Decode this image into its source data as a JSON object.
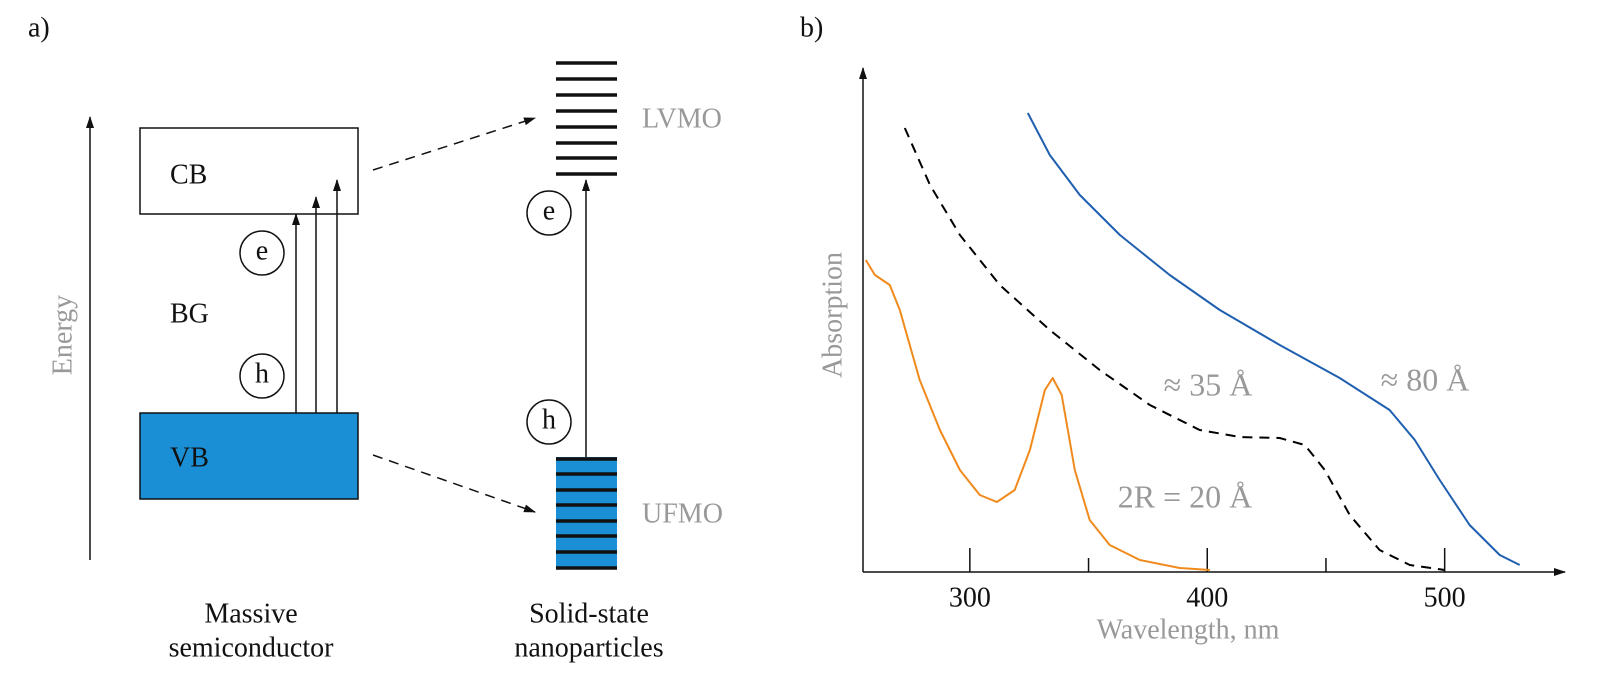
{
  "panel_a": {
    "label": "a)",
    "energy_label": "Energy",
    "bands": {
      "cb": "CB",
      "bg": "BG",
      "vb": "VB"
    },
    "bulk": {
      "e": "e",
      "h": "h",
      "caption": [
        "Massive",
        "semiconductor"
      ]
    },
    "nano": {
      "e": "e",
      "h": "h",
      "lvmo": "LVMO",
      "ufmo": "UFMO",
      "caption": [
        "Solid-state",
        "nanoparticles"
      ]
    }
  },
  "chart_data": {
    "type": "line",
    "panel_label": "b)",
    "x_label": "Wavelength, nm",
    "y_label": "Absorption",
    "xlim": [
      255,
      549
    ],
    "ylim": [
      0,
      100
    ],
    "xticks": [
      300,
      400,
      500
    ],
    "xminor": [
      350,
      450
    ],
    "series": [
      {
        "name": "2R = 20 Å",
        "color": "#f08a1c",
        "style": "solid",
        "x": [
          256.2,
          260.0,
          266.3,
          270.5,
          278.9,
          287.4,
          295.8,
          304.2,
          311.4,
          318.9,
          325.3,
          331.6,
          334.9,
          338.7,
          344.2,
          350.5,
          358.9,
          371.6,
          388.4,
          401.1
        ],
        "values": [
          62.4,
          59.4,
          57.4,
          52.4,
          38.4,
          28.4,
          20.4,
          15.4,
          14.0,
          16.4,
          24.4,
          36.4,
          38.8,
          35.4,
          20.4,
          10.4,
          5.4,
          2.4,
          0.8,
          0.4
        ]
      },
      {
        "name": "≈ 35 Å",
        "color": "#000000",
        "style": "dashed",
        "x": [
          272.6,
          283.2,
          295.8,
          312.6,
          333.7,
          354.7,
          375.8,
          396.8,
          413.7,
          430.5,
          441.1,
          449.5,
          460.0,
          472.6,
          485.3,
          500.0
        ],
        "values": [
          88.8,
          77.4,
          67.4,
          57.4,
          48.4,
          40.4,
          33.4,
          28.4,
          27.0,
          26.8,
          25.4,
          20.4,
          11.4,
          4.4,
          1.4,
          0.4
        ]
      },
      {
        "name": "≈ 80 Å",
        "color": "#1f5fb0",
        "style": "solid",
        "x": [
          324.4,
          333.7,
          346.3,
          363.2,
          384.2,
          405.3,
          430.5,
          455.8,
          476.8,
          487.4,
          497.9,
          510.5,
          523.2,
          531.6
        ],
        "values": [
          91.8,
          83.4,
          75.4,
          67.4,
          59.4,
          52.4,
          45.4,
          38.8,
          32.4,
          26.4,
          18.4,
          9.4,
          3.4,
          1.4
        ]
      }
    ]
  }
}
